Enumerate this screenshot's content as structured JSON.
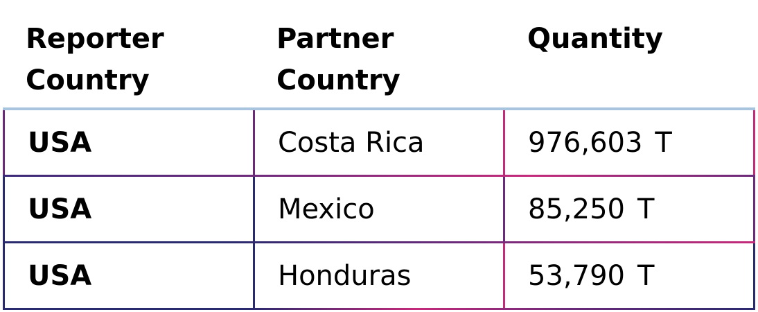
{
  "table": {
    "headers": [
      "Reporter Country",
      "Partner Country",
      "Quantity"
    ],
    "header_lines": [
      [
        "Reporter",
        "Country"
      ],
      [
        "Partner",
        "Country"
      ],
      [
        "Quantity"
      ]
    ],
    "rows": [
      {
        "reporter": "USA",
        "partner": "Costa Rica",
        "quantity": "976,603",
        "unit": "T"
      },
      {
        "reporter": "USA",
        "partner": "Mexico",
        "quantity": "85,250",
        "unit": "T"
      },
      {
        "reporter": "USA",
        "partner": "Honduras",
        "quantity": "53,790",
        "unit": "T"
      }
    ],
    "colors": {
      "header_rule": "#a9c4de",
      "navy_border": "#2a2a6e",
      "pink_border": "#c42a7a",
      "purple_border": "#6b2a7a"
    }
  }
}
